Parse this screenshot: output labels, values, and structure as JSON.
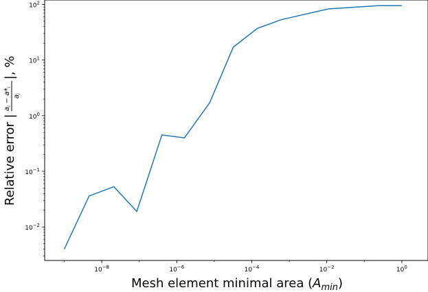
{
  "chart_data": {
    "type": "line",
    "xscale": "log",
    "yscale": "log",
    "xlim": [
      3e-10,
      5.0
    ],
    "ylim": [
      0.0025,
      120
    ],
    "xlabel": "Mesh element minimal area (A_min)",
    "xlabel_parts": {
      "text": "Mesh element minimal area (",
      "var": "A",
      "sub": "min",
      "close": ")"
    },
    "ylabel": "Relative error |(a_i − a*_i)/a_i|, %",
    "ylabel_parts": {
      "text": "Relative error |",
      "num": "a",
      "num_sub": "i",
      "minus": " − ",
      "star": "a*",
      "star_sub": "i",
      "den": "a",
      "den_sub": "i",
      "close": "|, %"
    },
    "x_ticks": [
      {
        "value": 1e-08,
        "base": "10",
        "exp": "−8"
      },
      {
        "value": 1e-06,
        "base": "10",
        "exp": "−6"
      },
      {
        "value": 0.0001,
        "base": "10",
        "exp": "−4"
      },
      {
        "value": 0.01,
        "base": "10",
        "exp": "−2"
      },
      {
        "value": 1,
        "base": "10",
        "exp": "0"
      }
    ],
    "y_ticks": [
      {
        "value": 0.01,
        "base": "10",
        "exp": "−2"
      },
      {
        "value": 0.1,
        "base": "10",
        "exp": "−1"
      },
      {
        "value": 1,
        "base": "10",
        "exp": "0"
      },
      {
        "value": 10,
        "base": "10",
        "exp": "1"
      },
      {
        "value": 100,
        "base": "10",
        "exp": "2"
      }
    ],
    "grid": false,
    "series": [
      {
        "color": "#1f77b4",
        "x": [
          1e-09,
          4.6e-09,
          2.1e-08,
          8.6e-08,
          4e-07,
          1.6e-06,
          7.5e-06,
          3.2e-05,
          0.00014,
          0.0006,
          0.011,
          0.24,
          1.0
        ],
        "y": [
          0.004,
          0.036,
          0.053,
          0.019,
          0.45,
          0.4,
          1.7,
          17,
          37,
          53,
          83,
          95,
          95
        ]
      }
    ]
  }
}
